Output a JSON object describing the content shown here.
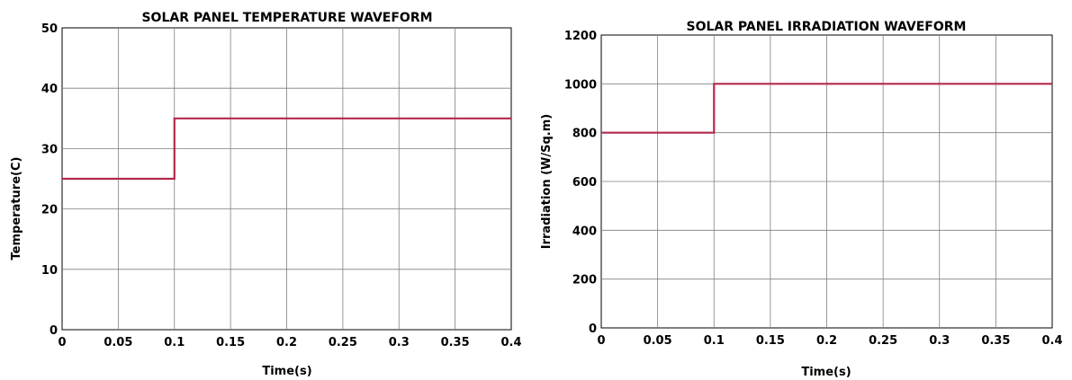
{
  "chart_data": [
    {
      "type": "line",
      "title": "SOLAR PANEL TEMPERATURE WAVEFORM",
      "xlabel": "Time(s)",
      "ylabel": "Temperature(C)",
      "xlim": [
        0,
        0.4
      ],
      "ylim": [
        0,
        50
      ],
      "xticks": [
        0,
        0.05,
        0.1,
        0.15,
        0.2,
        0.25,
        0.3,
        0.35,
        0.4
      ],
      "xtick_labels": [
        "0",
        "0.05",
        "0.1",
        "0.15",
        "0.2",
        "0.25",
        "0.3",
        "0.35",
        "0.4"
      ],
      "yticks": [
        0,
        10,
        20,
        30,
        40,
        50
      ],
      "ytick_labels": [
        "0",
        "10",
        "20",
        "30",
        "40",
        "50"
      ],
      "grid": true,
      "series": [
        {
          "color": "#b22a4a",
          "x": [
            0,
            0.1,
            0.1,
            0.4
          ],
          "y": [
            25,
            25,
            35,
            35
          ]
        }
      ]
    },
    {
      "type": "line",
      "title": "SOLAR PANEL IRRADIATION WAVEFORM",
      "xlabel": "Time(s)",
      "ylabel": "Irradiation (W/Sq.m)",
      "xlim": [
        0,
        0.4
      ],
      "ylim": [
        0,
        1200
      ],
      "xticks": [
        0,
        0.05,
        0.1,
        0.15,
        0.2,
        0.25,
        0.3,
        0.35,
        0.4
      ],
      "xtick_labels": [
        "0",
        "0.05",
        "0.1",
        "0.15",
        "0.2",
        "0.25",
        "0.3",
        "0.35",
        "0.4"
      ],
      "yticks": [
        0,
        200,
        400,
        600,
        800,
        1000,
        1200
      ],
      "ytick_labels": [
        "0",
        "200",
        "400",
        "600",
        "800",
        "1000",
        "1200"
      ],
      "grid": true,
      "series": [
        {
          "color": "#b22a4a",
          "x": [
            0,
            0.1,
            0.1,
            0.4
          ],
          "y": [
            800,
            800,
            1000,
            1000
          ]
        }
      ]
    }
  ]
}
